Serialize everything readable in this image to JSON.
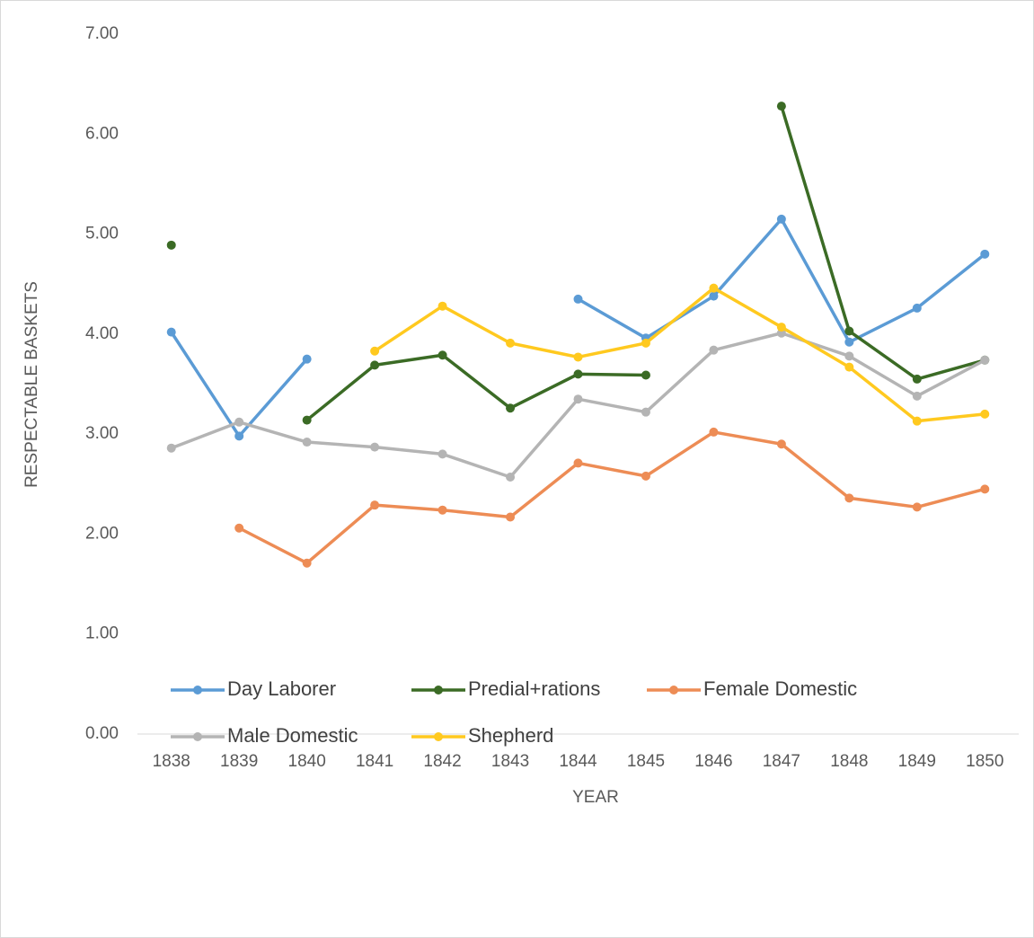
{
  "chart_data": {
    "type": "line",
    "x_label": "YEAR",
    "y_label": "RESPECTABLE BASKETS",
    "categories": [
      "1838",
      "1839",
      "1840",
      "1841",
      "1842",
      "1843",
      "1844",
      "1845",
      "1846",
      "1847",
      "1848",
      "1849",
      "1850"
    ],
    "ylim": [
      0,
      7
    ],
    "yticks": [
      {
        "value": 0,
        "label": "0.00"
      },
      {
        "value": 1,
        "label": "1.00"
      },
      {
        "value": 2,
        "label": "2.00"
      },
      {
        "value": 3,
        "label": "3.00"
      },
      {
        "value": 4,
        "label": "4.00"
      },
      {
        "value": 5,
        "label": "5.00"
      },
      {
        "value": 6,
        "label": "6.00"
      },
      {
        "value": 7,
        "label": "7.00"
      }
    ],
    "grid": false,
    "legend": "bottom",
    "series": [
      {
        "name": "Day Laborer",
        "color": "#5b9bd5",
        "values": [
          4.02,
          2.98,
          3.75,
          null,
          null,
          null,
          4.35,
          3.96,
          4.38,
          5.15,
          3.92,
          4.26,
          4.8
        ]
      },
      {
        "name": "Predial+rations",
        "color": "#3b6b25",
        "values": [
          4.89,
          null,
          3.14,
          3.69,
          3.79,
          3.26,
          3.6,
          3.59,
          null,
          6.28,
          4.03,
          3.55,
          3.74
        ]
      },
      {
        "name": "Female Domestic",
        "color": "#ed8c55",
        "values": [
          null,
          2.06,
          1.71,
          2.29,
          2.24,
          2.17,
          2.71,
          2.58,
          3.02,
          2.9,
          2.36,
          2.27,
          2.45
        ]
      },
      {
        "name": "Male Domestic",
        "color": "#b4b4b4",
        "values": [
          2.86,
          3.12,
          2.92,
          2.87,
          2.8,
          2.57,
          3.35,
          3.22,
          3.84,
          4.01,
          3.78,
          3.38,
          3.74
        ]
      },
      {
        "name": "Shepherd",
        "color": "#ffc91f",
        "values": [
          null,
          null,
          null,
          3.83,
          4.28,
          3.91,
          3.77,
          3.91,
          4.46,
          4.07,
          3.67,
          3.13,
          3.2
        ]
      }
    ]
  }
}
